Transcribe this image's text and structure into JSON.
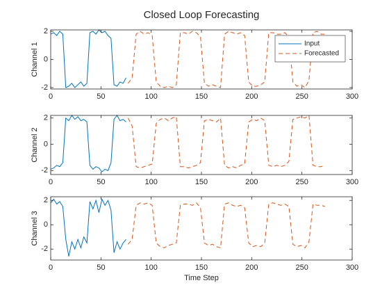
{
  "chart_data": [
    {
      "type": "line",
      "title": "Closed Loop Forecasting",
      "ylabel": "Channel 1",
      "legend": "upper right",
      "xlim": [
        0,
        300
      ],
      "xticks": [
        0,
        50,
        100,
        150,
        200,
        250,
        300
      ],
      "ylim": [
        -2.1,
        2.1
      ],
      "yticks": [
        -2,
        0,
        2
      ],
      "series": [
        {
          "name": "Input",
          "color": "#0072BD",
          "linestyle": "solid",
          "x": [
            0,
            3,
            6,
            9,
            12,
            15,
            18,
            21,
            24,
            27,
            30,
            33,
            36,
            39,
            42,
            45,
            48,
            51,
            54,
            57,
            60,
            63,
            66,
            69,
            72,
            75
          ],
          "values": [
            1.8,
            1.9,
            1.7,
            2.0,
            1.8,
            -2.0,
            -1.9,
            -1.7,
            -2.0,
            -1.8,
            -1.6,
            -1.9,
            -1.7,
            1.9,
            2.0,
            1.8,
            2.1,
            1.9,
            2.0,
            1.7,
            1.5,
            -1.8,
            -1.9,
            -1.6,
            -1.7,
            -1.3
          ]
        },
        {
          "name": "Forecasted",
          "color": "#D95319",
          "linestyle": "dashed",
          "x": [
            77,
            81,
            85,
            89,
            93,
            97,
            101,
            105,
            109,
            113,
            117,
            121,
            125,
            129,
            133,
            137,
            141,
            145,
            149,
            153,
            157,
            161,
            165,
            169,
            173,
            177,
            181,
            185,
            189,
            193,
            197,
            201,
            205,
            209,
            213,
            217,
            221,
            225,
            229,
            233,
            237,
            241,
            245,
            249,
            253,
            257,
            261,
            265,
            269,
            273
          ],
          "values": [
            -1.7,
            -1.3,
            1.8,
            2.0,
            1.8,
            1.9,
            1.7,
            -1.6,
            -1.9,
            -2.0,
            -1.9,
            -2.0,
            -1.8,
            1.9,
            1.9,
            1.8,
            2.0,
            1.9,
            1.6,
            -1.7,
            -1.9,
            -1.8,
            -1.9,
            -2.0,
            1.8,
            2.0,
            1.9,
            1.8,
            1.9,
            1.7,
            -1.6,
            -1.9,
            -1.9,
            -1.8,
            -1.6,
            1.9,
            1.9,
            1.8,
            1.8,
            1.9,
            1.6,
            -1.6,
            -1.9,
            -1.8,
            -2.0,
            -1.5,
            1.9,
            2.0,
            1.8,
            1.8
          ]
        }
      ]
    },
    {
      "type": "line",
      "ylabel": "Channel 2",
      "xlim": [
        0,
        300
      ],
      "xticks": [
        0,
        50,
        100,
        150,
        200,
        250,
        300
      ],
      "ylim": [
        -2.3,
        2.2
      ],
      "yticks": [
        -2,
        0,
        2
      ],
      "series": [
        {
          "color": "#0072BD",
          "linestyle": "solid",
          "x": [
            0,
            3,
            6,
            9,
            12,
            15,
            18,
            21,
            24,
            27,
            30,
            33,
            36,
            39,
            42,
            45,
            48,
            51,
            54,
            57,
            60,
            63,
            66,
            69,
            72,
            75
          ],
          "values": [
            -1.9,
            -1.8,
            -1.6,
            -1.7,
            -1.4,
            2.0,
            1.8,
            2.2,
            1.9,
            2.1,
            1.8,
            1.9,
            1.7,
            -1.6,
            -1.9,
            -1.7,
            -1.8,
            -2.1,
            -1.9,
            -2.0,
            -1.4,
            1.9,
            2.2,
            1.8,
            1.9,
            1.7
          ]
        },
        {
          "color": "#D95319",
          "linestyle": "dashed",
          "x": [
            77,
            81,
            85,
            89,
            93,
            97,
            101,
            105,
            109,
            113,
            117,
            121,
            125,
            129,
            133,
            137,
            141,
            145,
            149,
            153,
            157,
            161,
            165,
            169,
            173,
            177,
            181,
            185,
            189,
            193,
            197,
            201,
            205,
            209,
            213,
            217,
            221,
            225,
            229,
            233,
            237,
            241,
            245,
            249,
            253,
            257,
            261,
            265,
            269,
            273
          ],
          "values": [
            2.0,
            1.4,
            -1.7,
            -1.8,
            -1.7,
            -1.6,
            -1.5,
            1.6,
            1.9,
            2.0,
            1.8,
            2.0,
            2.1,
            -1.7,
            -1.7,
            -1.8,
            -1.7,
            -1.6,
            -1.4,
            1.8,
            1.9,
            1.8,
            1.7,
            2.0,
            -1.6,
            -1.8,
            -1.7,
            -1.8,
            -1.6,
            -1.5,
            1.7,
            1.9,
            1.8,
            2.0,
            1.8,
            -1.6,
            -1.7,
            -1.6,
            -1.7,
            -1.6,
            -1.3,
            1.9,
            2.0,
            2.1,
            2.0,
            2.2,
            -1.6,
            -1.7,
            -1.7,
            -1.6
          ]
        }
      ]
    },
    {
      "type": "line",
      "ylabel": "Channel 3",
      "xlabel": "Time Step",
      "xlim": [
        0,
        300
      ],
      "xticks": [
        0,
        50,
        100,
        150,
        200,
        250,
        300
      ],
      "ylim": [
        -2.9,
        2.3
      ],
      "yticks": [
        -2,
        0,
        2
      ],
      "series": [
        {
          "color": "#0072BD",
          "linestyle": "solid",
          "x": [
            0,
            3,
            6,
            9,
            12,
            15,
            18,
            21,
            24,
            27,
            30,
            33,
            36,
            39,
            42,
            45,
            48,
            51,
            54,
            57,
            60,
            63,
            66,
            69,
            72,
            75
          ],
          "values": [
            1.8,
            2.1,
            1.7,
            1.9,
            1.5,
            -1.2,
            -2.6,
            -1.4,
            -2.0,
            -1.2,
            -1.9,
            -1.0,
            -1.5,
            1.9,
            1.3,
            2.0,
            1.0,
            2.1,
            1.6,
            2.0,
            1.2,
            -2.3,
            -1.4,
            -2.0,
            -1.5,
            -1.2
          ]
        },
        {
          "color": "#D95319",
          "linestyle": "dashed",
          "x": [
            77,
            81,
            85,
            89,
            93,
            97,
            101,
            105,
            109,
            113,
            117,
            121,
            125,
            129,
            133,
            137,
            141,
            145,
            149,
            153,
            157,
            161,
            165,
            169,
            173,
            177,
            181,
            185,
            189,
            193,
            197,
            201,
            205,
            209,
            213,
            217,
            221,
            225,
            229,
            233,
            237,
            241,
            245,
            249,
            253,
            257,
            261,
            265,
            269,
            273
          ],
          "values": [
            -1.6,
            -1.2,
            1.6,
            1.8,
            1.7,
            1.8,
            1.6,
            -1.5,
            -1.8,
            -1.9,
            -1.7,
            -1.6,
            -1.5,
            1.6,
            1.7,
            1.7,
            1.6,
            1.8,
            1.4,
            -1.5,
            -1.7,
            -1.6,
            -1.8,
            -1.9,
            1.7,
            1.8,
            1.6,
            1.5,
            1.6,
            1.4,
            -1.5,
            -1.8,
            -1.7,
            -1.8,
            -1.5,
            1.7,
            1.8,
            1.7,
            1.6,
            1.7,
            1.5,
            -1.6,
            -1.8,
            -1.7,
            -1.9,
            -1.4,
            1.7,
            1.6,
            1.6,
            1.5
          ]
        }
      ]
    }
  ]
}
